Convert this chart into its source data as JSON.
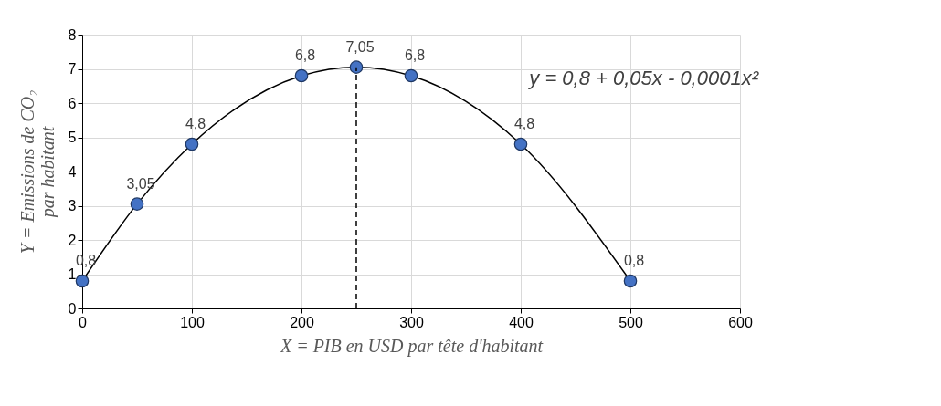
{
  "chart_data": {
    "type": "line",
    "xlabel": "X = PIB en USD par tête d'habitant",
    "ylabel": "Y = Emissions de CO₂ par habitant",
    "x": [
      0,
      50,
      100,
      200,
      250,
      300,
      400,
      500
    ],
    "series": [
      {
        "color": "#4472c4",
        "values": [
          0.8,
          3.05,
          4.8,
          6.8,
          7.05,
          6.8,
          4.8,
          0.8
        ]
      }
    ],
    "xlim": [
      0,
      600
    ],
    "xticks": [
      0,
      100,
      200,
      300,
      400,
      500,
      600
    ],
    "ylim": [
      0,
      8
    ],
    "yticks": [
      0,
      1,
      2,
      3,
      4,
      5,
      6,
      7,
      8
    ],
    "grid": true,
    "marker": "circle",
    "value_labels": [
      "0,8",
      "3,05",
      "4,8",
      "6,8",
      "7,05",
      "6,8",
      "4,8",
      "0,8"
    ],
    "ref_lines": [
      {
        "axis": "x",
        "value": 250,
        "line_style": "dashed",
        "color": "#000000"
      }
    ],
    "annotations": [
      "y = 0,8 + 0,05x - 0,0001x²"
    ]
  }
}
